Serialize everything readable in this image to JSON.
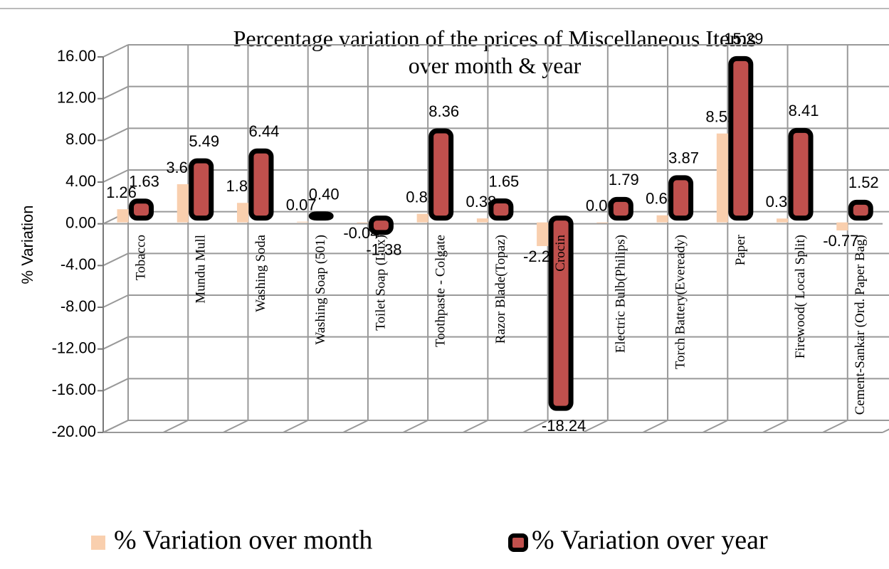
{
  "chart_data": {
    "type": "bar",
    "title": "Percentage variation of the prices of Miscellaneous Items over month & year",
    "y_axis_label": "% Variation",
    "categories": [
      "Tobacco",
      "Mundu Mull",
      "Washing Soda",
      "Washing Soap (501)",
      "Toilet Soap (Lux)",
      "Toothpaste - Colgate",
      "Razor Blade(Topaz)",
      "Crocin",
      "Electric Bulb(Philips)",
      "Torch Battery(Eveready)",
      "Paper",
      "Firewood( Local Split)",
      "Cement-Sankar (Ord. Paper Bag)"
    ],
    "series": [
      {
        "name": "% Variation over month",
        "color": "#f9cfae",
        "values": [
          1.26,
          3.66,
          1.87,
          0.07,
          -0.04,
          0.82,
          0.38,
          -2.27,
          0,
          0.68,
          8.52,
          0.37,
          -0.77
        ],
        "value_labels": [
          "1.26",
          "3.66",
          "1.87",
          "0.07",
          "-0.04",
          "0.82",
          "0.38",
          "-2.27",
          "0.00",
          "0.68",
          "8.52",
          "0.37",
          "-0.77"
        ]
      },
      {
        "name": "% Variation over year",
        "color": "#c0504d",
        "values": [
          1.63,
          5.49,
          6.44,
          0.4,
          -1.38,
          8.36,
          1.65,
          -18.24,
          1.79,
          3.87,
          15.29,
          8.41,
          1.52
        ],
        "value_labels": [
          "1.63",
          "5.49",
          "6.44",
          "0.40",
          "-1.38",
          "8.36",
          "1.65",
          "-18.24",
          "1.79",
          "3.87",
          "15.29",
          "8.41",
          "1.52"
        ]
      }
    ],
    "ylim": [
      -20,
      16
    ],
    "yticks": [
      {
        "value": -20,
        "label": "-20.00"
      },
      {
        "value": -16,
        "label": "-16.00"
      },
      {
        "value": -12,
        "label": "-12.00"
      },
      {
        "value": -8,
        "label": "-8.00"
      },
      {
        "value": -4,
        "label": "-4.00"
      },
      {
        "value": 0,
        "label": "0.00"
      },
      {
        "value": 4,
        "label": "4.00"
      },
      {
        "value": 8,
        "label": "8.00"
      },
      {
        "value": 12,
        "label": "12.00"
      },
      {
        "value": 16,
        "label": "16.00"
      }
    ],
    "grid": true,
    "legend": "bottom"
  }
}
